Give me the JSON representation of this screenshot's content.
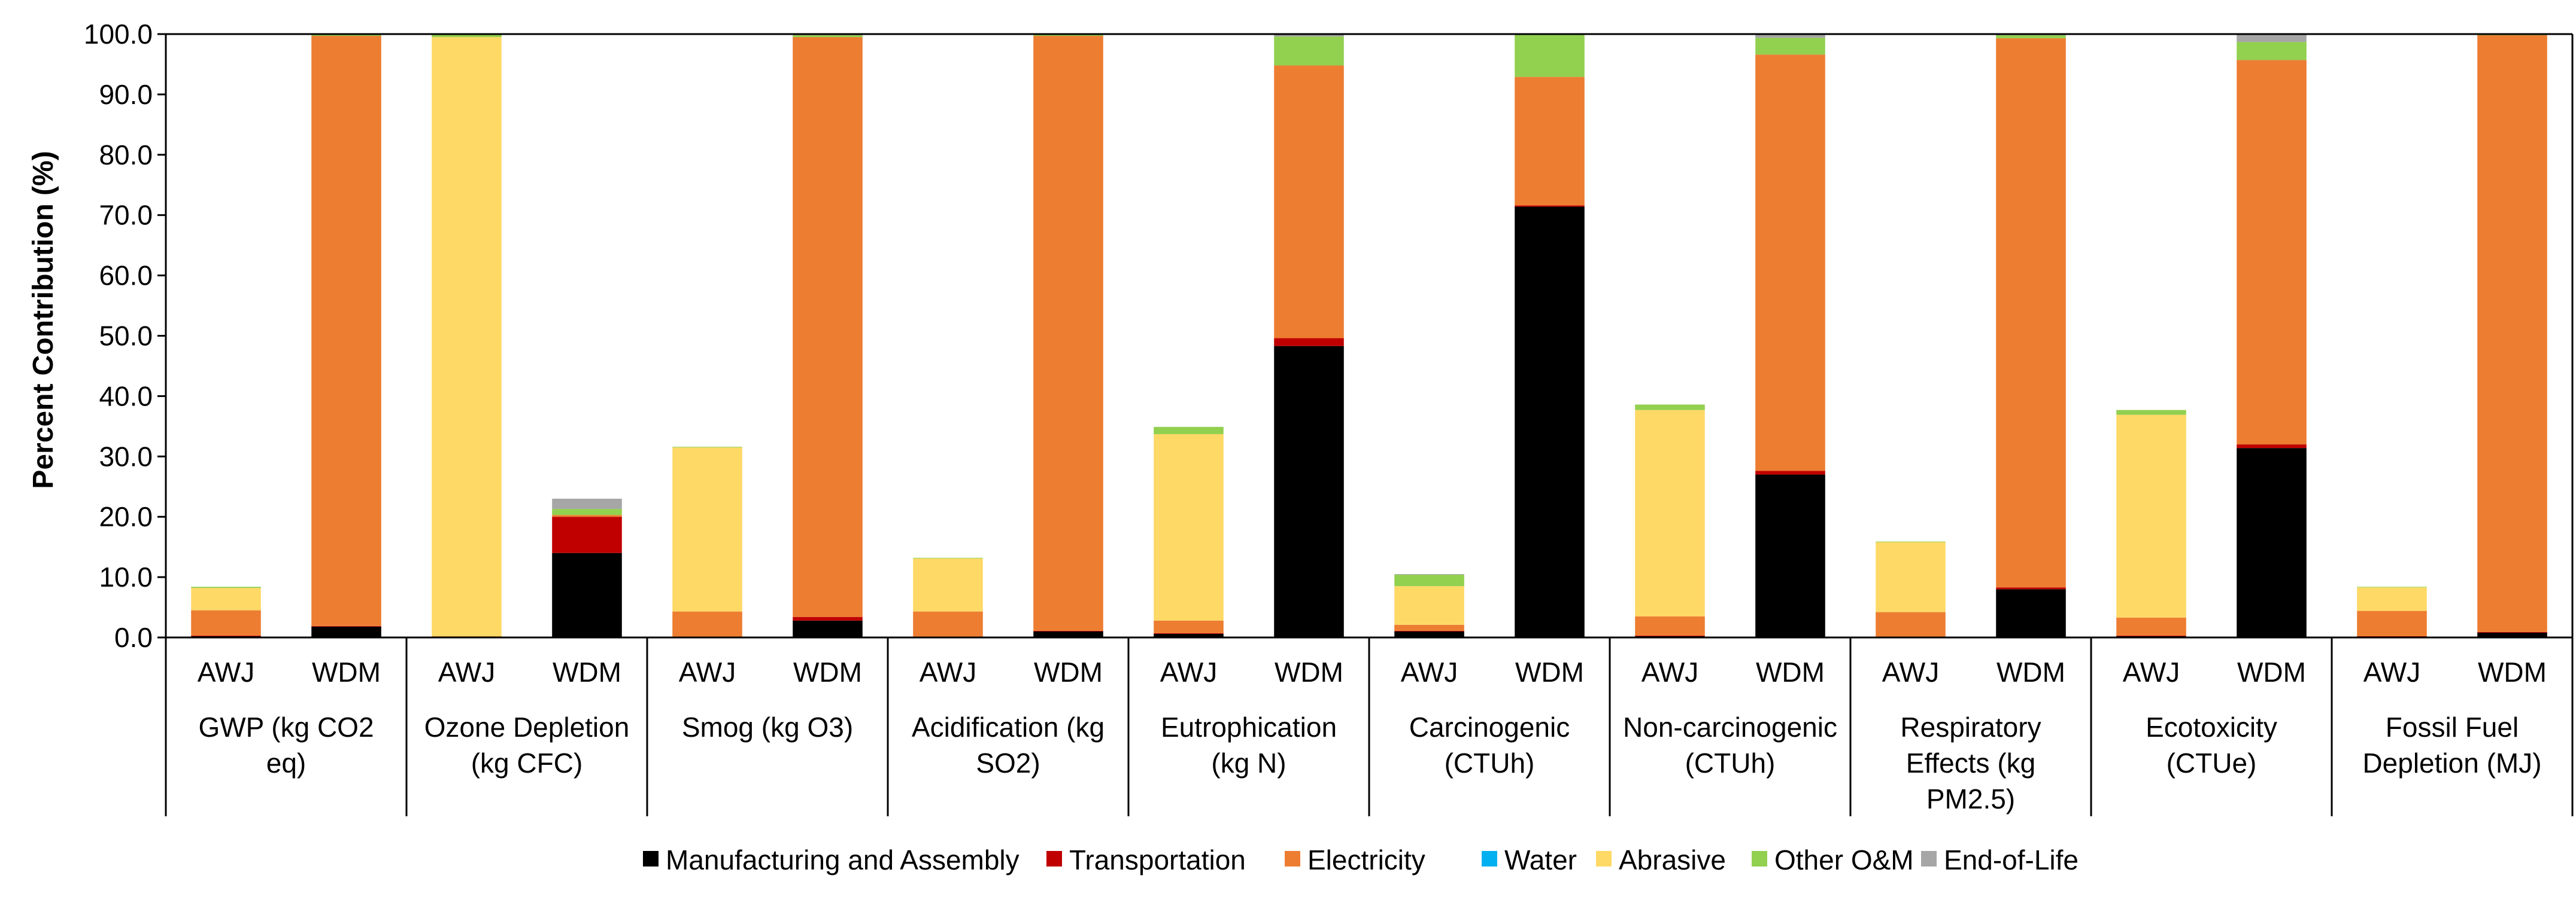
{
  "chart_data": {
    "type": "bar",
    "stacked": true,
    "title": "",
    "ylabel": "Percent Contribution (%)",
    "xlabel": "",
    "ylim": [
      0,
      100
    ],
    "yticks": [
      "0.0",
      "10.0",
      "20.0",
      "30.0",
      "40.0",
      "50.0",
      "60.0",
      "70.0",
      "80.0",
      "90.0",
      "100.0"
    ],
    "legend_position": "bottom",
    "series": [
      {
        "name": "Manufacturing and Assembly",
        "color": "#000000"
      },
      {
        "name": "Transportation",
        "color": "#C00000"
      },
      {
        "name": "Electricity",
        "color": "#ED7D31"
      },
      {
        "name": "Water",
        "color": "#00B0F0"
      },
      {
        "name": "Abrasive",
        "color": "#FFD966"
      },
      {
        "name": "Other O&M",
        "color": "#92D050"
      },
      {
        "name": "End-of-Life",
        "color": "#A6A6A6"
      }
    ],
    "groups": [
      {
        "label": "GWP (kg CO2 eq)",
        "label_lines": [
          "GWP (kg CO2",
          "eq)"
        ],
        "bars": [
          {
            "label": "AWJ",
            "values": [
              0.2,
              0.1,
              4.2,
              0.0,
              3.7,
              0.2,
              0.0
            ]
          },
          {
            "label": "WDM",
            "values": [
              1.8,
              0.1,
              97.8,
              0.0,
              0.0,
              0.2,
              0.1
            ]
          }
        ]
      },
      {
        "label": "Ozone Depletion (kg CFC)",
        "label_lines": [
          "Ozone Depletion",
          "(kg CFC)"
        ],
        "bars": [
          {
            "label": "AWJ",
            "values": [
              0.0,
              0.0,
              0.2,
              0.0,
              99.3,
              0.5,
              0.0
            ]
          },
          {
            "label": "WDM",
            "values": [
              14.0,
              6.0,
              0.3,
              0.0,
              0.0,
              1.0,
              1.7
            ]
          }
        ]
      },
      {
        "label": "Smog (kg O3)",
        "label_lines": [
          "Smog (kg O3)"
        ],
        "bars": [
          {
            "label": "AWJ",
            "values": [
              0.0,
              0.1,
              4.2,
              0.0,
              27.2,
              0.1,
              0.0
            ]
          },
          {
            "label": "WDM",
            "values": [
              2.8,
              0.6,
              96.1,
              0.0,
              0.0,
              0.3,
              0.2
            ]
          }
        ]
      },
      {
        "label": "Acidification (kg SO2)",
        "label_lines": [
          "Acidification (kg",
          "SO2)"
        ],
        "bars": [
          {
            "label": "AWJ",
            "values": [
              0.0,
              0.0,
              4.3,
              0.0,
              8.8,
              0.1,
              0.0
            ]
          },
          {
            "label": "WDM",
            "values": [
              1.0,
              0.1,
              98.6,
              0.0,
              0.0,
              0.2,
              0.1
            ]
          }
        ]
      },
      {
        "label": "Eutrophication (kg N)",
        "label_lines": [
          "Eutrophication",
          "(kg N)"
        ],
        "bars": [
          {
            "label": "AWJ",
            "values": [
              0.6,
              0.1,
              2.1,
              0.0,
              30.9,
              1.2,
              0.0
            ]
          },
          {
            "label": "WDM",
            "values": [
              48.3,
              1.3,
              45.2,
              0.0,
              0.0,
              4.8,
              0.4
            ]
          }
        ]
      },
      {
        "label": "Carcinogenic (CTUh)",
        "label_lines": [
          "Carcinogenic",
          "(CTUh)"
        ],
        "bars": [
          {
            "label": "AWJ",
            "values": [
              1.0,
              0.1,
              1.0,
              0.0,
              6.4,
              1.9,
              0.1
            ]
          },
          {
            "label": "WDM",
            "values": [
              71.4,
              0.2,
              21.3,
              0.0,
              0.0,
              7.0,
              0.1
            ]
          }
        ]
      },
      {
        "label": "Non-carcinogenic (CTUh)",
        "label_lines": [
          "Non-carcinogenic",
          "(CTUh)"
        ],
        "bars": [
          {
            "label": "AWJ",
            "values": [
              0.2,
              0.1,
              3.2,
              0.0,
              34.2,
              0.9,
              0.0
            ]
          },
          {
            "label": "WDM",
            "values": [
              27.0,
              0.6,
              69.0,
              0.0,
              0.0,
              2.8,
              0.6
            ]
          }
        ]
      },
      {
        "label": "Respiratory Effects (kg PM2.5)",
        "label_lines": [
          "Respiratory",
          "Effects (kg",
          "PM2.5)"
        ],
        "bars": [
          {
            "label": "AWJ",
            "values": [
              0.0,
              0.0,
              4.2,
              0.0,
              11.6,
              0.1,
              0.0
            ]
          },
          {
            "label": "WDM",
            "values": [
              8.0,
              0.3,
              91.0,
              0.0,
              0.0,
              0.5,
              0.2
            ]
          }
        ]
      },
      {
        "label": "Ecotoxicity (CTUe)",
        "label_lines": [
          "Ecotoxicity",
          "(CTUe)"
        ],
        "bars": [
          {
            "label": "AWJ",
            "values": [
              0.2,
              0.1,
              3.0,
              0.0,
              33.6,
              0.8,
              0.0
            ]
          },
          {
            "label": "WDM",
            "values": [
              31.4,
              0.6,
              63.7,
              0.0,
              0.0,
              3.0,
              1.3
            ]
          }
        ]
      },
      {
        "label": "Fossil Fuel Depletion (MJ)",
        "label_lines": [
          "Fossil Fuel",
          "Depletion (MJ)"
        ],
        "bars": [
          {
            "label": "AWJ",
            "values": [
              0.1,
              0.1,
              4.2,
              0.0,
              3.9,
              0.1,
              0.0
            ]
          },
          {
            "label": "WDM",
            "values": [
              0.8,
              0.1,
              98.9,
              0.0,
              0.0,
              0.2,
              0.0
            ]
          }
        ]
      }
    ]
  }
}
